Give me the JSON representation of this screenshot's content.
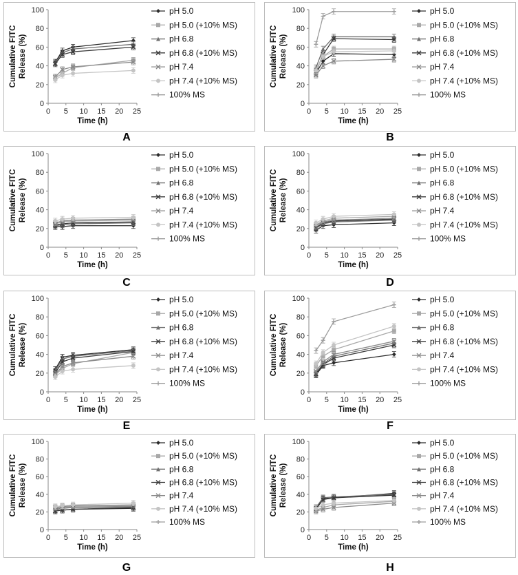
{
  "legend_labels": [
    "pH 5.0",
    "pH 5.0 (+10% MS)",
    "pH 6.8",
    "pH 6.8 (+10% MS)",
    "pH 7.4",
    "pH 7.4 (+10% MS)",
    "100% MS"
  ],
  "series_colors": [
    "#2b2b2b",
    "#a8a8a8",
    "#707070",
    "#3a3a3a",
    "#8a8a8a",
    "#c4c4c4",
    "#9c9c9c"
  ],
  "chart_data": [
    {
      "panel": "A",
      "type": "line",
      "xlabel": "Time (h)",
      "ylabel_line1": "Cumulative FITC",
      "ylabel_line2": "Release (%)",
      "xlim": [
        0,
        25
      ],
      "ylim": [
        0,
        100
      ],
      "x": [
        2,
        4,
        7,
        24
      ],
      "series": [
        {
          "name": "pH 5.0",
          "values": [
            44,
            56,
            60,
            67
          ]
        },
        {
          "name": "pH 5.0 (+10% MS)",
          "values": [
            27,
            32,
            38,
            46
          ]
        },
        {
          "name": "pH 6.8",
          "values": [
            43,
            54,
            58,
            63
          ]
        },
        {
          "name": "pH 6.8 (+10% MS)",
          "values": [
            42,
            52,
            55,
            60
          ]
        },
        {
          "name": "pH 7.4",
          "values": [
            28,
            36,
            39,
            44
          ]
        },
        {
          "name": "pH 7.4 (+10% MS)",
          "values": [
            25,
            30,
            32,
            35
          ]
        },
        {
          "name": "100% MS",
          "values": [
            null,
            null,
            null,
            null
          ]
        }
      ]
    },
    {
      "panel": "B",
      "type": "line",
      "xlabel": "Time (h)",
      "ylabel_line1": "Cumulative FITC",
      "ylabel_line2": "Release (%)",
      "xlim": [
        0,
        25
      ],
      "ylim": [
        0,
        100
      ],
      "x": [
        2,
        4,
        7,
        24
      ],
      "series": [
        {
          "name": "pH 5.0",
          "values": [
            32,
            45,
            53,
            52
          ]
        },
        {
          "name": "pH 5.0 (+10% MS)",
          "values": [
            36,
            50,
            58,
            58
          ]
        },
        {
          "name": "pH 6.8",
          "values": [
            38,
            58,
            71,
            71
          ]
        },
        {
          "name": "pH 6.8 (+10% MS)",
          "values": [
            33,
            52,
            69,
            68
          ]
        },
        {
          "name": "pH 7.4",
          "values": [
            30,
            40,
            45,
            47
          ]
        },
        {
          "name": "pH 7.4 (+10% MS)",
          "values": [
            35,
            50,
            55,
            56
          ]
        },
        {
          "name": "100% MS",
          "values": [
            63,
            93,
            98,
            98
          ]
        }
      ]
    },
    {
      "panel": "C",
      "type": "line",
      "xlabel": "Time (h)",
      "ylabel_line1": "Cumulative FITC",
      "ylabel_line2": "Release (%)",
      "xlim": [
        0,
        25
      ],
      "ylim": [
        0,
        100
      ],
      "x": [
        2,
        4,
        7,
        24
      ],
      "series": [
        {
          "name": "pH 5.0",
          "values": [
            22,
            22,
            23,
            23
          ]
        },
        {
          "name": "pH 5.0 (+10% MS)",
          "values": [
            25,
            27,
            28,
            29
          ]
        },
        {
          "name": "pH 6.8",
          "values": [
            23,
            24,
            25,
            26
          ]
        },
        {
          "name": "pH 6.8 (+10% MS)",
          "values": [
            24,
            25,
            26,
            27
          ]
        },
        {
          "name": "pH 7.4",
          "values": [
            26,
            28,
            29,
            30
          ]
        },
        {
          "name": "pH 7.4 (+10% MS)",
          "values": [
            28,
            30,
            31,
            32
          ]
        },
        {
          "name": "100% MS",
          "values": [
            null,
            null,
            null,
            null
          ]
        }
      ]
    },
    {
      "panel": "D",
      "type": "line",
      "xlabel": "Time (h)",
      "ylabel_line1": "Cumulative FITC",
      "ylabel_line2": "Release (%)",
      "xlim": [
        0,
        25
      ],
      "ylim": [
        0,
        100
      ],
      "x": [
        2,
        4,
        7,
        24
      ],
      "series": [
        {
          "name": "pH 5.0",
          "values": [
            18,
            23,
            24,
            26
          ]
        },
        {
          "name": "pH 5.0 (+10% MS)",
          "values": [
            24,
            28,
            31,
            33
          ]
        },
        {
          "name": "pH 6.8",
          "values": [
            20,
            25,
            27,
            29
          ]
        },
        {
          "name": "pH 6.8 (+10% MS)",
          "values": [
            21,
            26,
            28,
            30
          ]
        },
        {
          "name": "pH 7.4",
          "values": [
            23,
            27,
            29,
            31
          ]
        },
        {
          "name": "pH 7.4 (+10% MS)",
          "values": [
            26,
            30,
            33,
            35
          ]
        },
        {
          "name": "100% MS",
          "values": [
            null,
            null,
            null,
            null
          ]
        }
      ]
    },
    {
      "panel": "E",
      "type": "line",
      "xlabel": "Time (h)",
      "ylabel_line1": "Cumulative FITC",
      "ylabel_line2": "Release (%)",
      "xlim": [
        0,
        25
      ],
      "ylim": [
        0,
        100
      ],
      "x": [
        2,
        4,
        7,
        24
      ],
      "series": [
        {
          "name": "pH 5.0",
          "values": [
            24,
            37,
            39,
            45
          ]
        },
        {
          "name": "pH 5.0 (+10% MS)",
          "values": [
            18,
            25,
            30,
            42
          ]
        },
        {
          "name": "pH 6.8",
          "values": [
            22,
            35,
            38,
            44
          ]
        },
        {
          "name": "pH 6.8 (+10% MS)",
          "values": [
            20,
            32,
            36,
            43
          ]
        },
        {
          "name": "pH 7.4",
          "values": [
            19,
            27,
            31,
            38
          ]
        },
        {
          "name": "pH 7.4 (+10% MS)",
          "values": [
            16,
            22,
            24,
            28
          ]
        },
        {
          "name": "100% MS",
          "values": [
            null,
            null,
            null,
            null
          ]
        }
      ]
    },
    {
      "panel": "F",
      "type": "line",
      "xlabel": "Time (h)",
      "ylabel_line1": "Cumulative FITC",
      "ylabel_line2": "Release (%)",
      "xlim": [
        0,
        25
      ],
      "ylim": [
        0,
        100
      ],
      "x": [
        2,
        4,
        7,
        24
      ],
      "series": [
        {
          "name": "pH 5.0",
          "values": [
            18,
            28,
            31,
            40
          ]
        },
        {
          "name": "pH 5.0 (+10% MS)",
          "values": [
            28,
            38,
            45,
            65
          ]
        },
        {
          "name": "pH 6.8",
          "values": [
            20,
            30,
            38,
            52
          ]
        },
        {
          "name": "pH 6.8 (+10% MS)",
          "values": [
            19,
            29,
            36,
            50
          ]
        },
        {
          "name": "pH 7.4",
          "values": [
            22,
            32,
            40,
            54
          ]
        },
        {
          "name": "pH 7.4 (+10% MS)",
          "values": [
            30,
            42,
            50,
            70
          ]
        },
        {
          "name": "100% MS",
          "values": [
            44,
            55,
            75,
            93
          ]
        }
      ]
    },
    {
      "panel": "G",
      "type": "line",
      "xlabel": "Time (h)",
      "ylabel_line1": "Cumulative FITC",
      "ylabel_line2": "Release (%)",
      "xlim": [
        0,
        25
      ],
      "ylim": [
        0,
        100
      ],
      "x": [
        2,
        4,
        7,
        24
      ],
      "series": [
        {
          "name": "pH 5.0",
          "values": [
            22,
            22,
            23,
            24
          ]
        },
        {
          "name": "pH 5.0 (+10% MS)",
          "values": [
            24,
            25,
            26,
            27
          ]
        },
        {
          "name": "pH 6.8",
          "values": [
            23,
            24,
            25,
            26
          ]
        },
        {
          "name": "pH 6.8 (+10% MS)",
          "values": [
            21,
            22,
            23,
            25
          ]
        },
        {
          "name": "pH 7.4",
          "values": [
            25,
            26,
            27,
            28
          ]
        },
        {
          "name": "pH 7.4 (+10% MS)",
          "values": [
            26,
            27,
            28,
            30
          ]
        },
        {
          "name": "100% MS",
          "values": [
            null,
            null,
            null,
            null
          ]
        }
      ]
    },
    {
      "panel": "H",
      "type": "line",
      "xlabel": "Time (h)",
      "ylabel_line1": "Cumulative FITC",
      "ylabel_line2": "Release (%)",
      "xlim": [
        0,
        25
      ],
      "ylim": [
        0,
        100
      ],
      "x": [
        2,
        4,
        7,
        24
      ],
      "series": [
        {
          "name": "pH 5.0",
          "values": [
            24,
            35,
            36,
            41
          ]
        },
        {
          "name": "pH 5.0 (+10% MS)",
          "values": [
            22,
            25,
            28,
            32
          ]
        },
        {
          "name": "pH 6.8",
          "values": [
            25,
            36,
            37,
            40
          ]
        },
        {
          "name": "pH 6.8 (+10% MS)",
          "values": [
            23,
            34,
            36,
            39
          ]
        },
        {
          "name": "pH 7.4",
          "values": [
            21,
            23,
            25,
            30
          ]
        },
        {
          "name": "pH 7.4 (+10% MS)",
          "values": [
            24,
            28,
            30,
            33
          ]
        },
        {
          "name": "100% MS",
          "values": [
            null,
            null,
            null,
            null
          ]
        }
      ]
    }
  ]
}
